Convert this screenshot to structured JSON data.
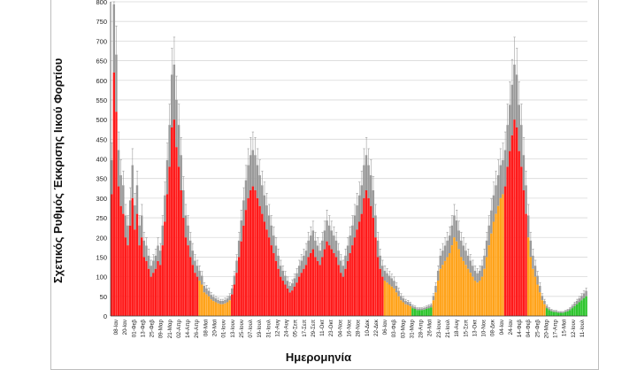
{
  "chart_data": {
    "type": "bar",
    "ylabel": "Σχετικός Ρυθμός Έκκρισης Ιικού Φορτίου",
    "xlabel": "Ημερομηνία",
    "ylim": [
      0,
      800
    ],
    "yticks": [
      0,
      50,
      100,
      150,
      200,
      250,
      300,
      350,
      400,
      450,
      500,
      550,
      600,
      650,
      700,
      750,
      800
    ],
    "grid": true,
    "legend": "none",
    "colors": {
      "red": "#ff1a1a",
      "orange": "#ffa31a",
      "green": "#2ec52e",
      "error_bar": "#8c8c8c",
      "upper_band": "#9a9a9a"
    },
    "x_tick_labels": [
      "08-Ιαν",
      "20-Ιαν",
      "01-Φεβ",
      "13-Φεβ",
      "25-Φεβ",
      "09-Μαρ",
      "21-Μαρ",
      "02-Απρ",
      "14-Απρ",
      "26-Απρ",
      "08-Μαϊ",
      "20-Μαϊ",
      "01-Ιουν",
      "13-Ιουν",
      "25-Ιουν",
      "07-Ιουλ",
      "19-Ιουλ",
      "31-Ιουλ",
      "12-Αυγ",
      "24-Αυγ",
      "05-Σεπ",
      "17-Σεπ",
      "29-Σεπ",
      "11-Οκτ",
      "23-Οκτ",
      "04-Νοε",
      "16-Νοε",
      "28-Νοε",
      "10-Δεκ",
      "22-Δεκ",
      "06-Ιαν",
      "03-Φεβ",
      "03-Μαρ",
      "31-Μαρ",
      "28-Απρ",
      "26-Μαϊ",
      "23-Ιουν",
      "21-Ιουλ",
      "18-Αυγ",
      "15-Σεπ",
      "13-Οκτ",
      "10-Νοε",
      "08-Δεκ",
      "04-Ιαν",
      "24-Ιαν",
      "14-Φεβ",
      "04-Φεβ",
      "25-Φεβ",
      "20-Μαρ",
      "17-Απρ",
      "15-Μαϊ",
      "12-Ιουν",
      "11-Ιουλ"
    ],
    "segments": [
      {
        "color": "red",
        "values": [
          310,
          620,
          520,
          330,
          280,
          260,
          200,
          180,
          230,
          300,
          220,
          260,
          180,
          200,
          150,
          140,
          120,
          100,
          110,
          120,
          140,
          130,
          180,
          240,
          310,
          380,
          480,
          500,
          430,
          380,
          320,
          250,
          200,
          180,
          150,
          130,
          110,
          100
        ]
      },
      {
        "color": "orange",
        "values": [
          90,
          80,
          60,
          55,
          50,
          42,
          38,
          35,
          32,
          30,
          30,
          32,
          35,
          40
        ]
      },
      {
        "color": "red",
        "values": [
          55,
          80,
          110,
          150,
          190,
          230,
          270,
          300,
          320,
          330,
          320,
          300,
          280,
          260,
          240,
          220,
          200,
          180,
          160,
          140,
          120,
          100,
          90,
          80,
          70,
          60,
          65,
          75,
          85,
          100,
          110,
          120,
          130,
          150,
          160,
          170,
          150,
          140,
          130,
          150,
          170,
          190,
          180,
          170,
          160,
          150,
          130,
          110,
          100,
          120,
          140,
          160,
          180,
          200,
          220,
          240,
          260,
          300,
          320,
          300,
          280,
          250,
          200,
          150,
          120,
          100
        ]
      },
      {
        "color": "orange",
        "values": [
          90,
          85,
          80,
          75,
          70,
          60,
          50,
          40,
          35,
          30,
          28,
          25
        ]
      },
      {
        "color": "green",
        "values": [
          20,
          18,
          15,
          15,
          15,
          16,
          18,
          20,
          22
        ]
      },
      {
        "color": "orange",
        "values": [
          40,
          60,
          90,
          120,
          130,
          140,
          150,
          160,
          180,
          200,
          190,
          170,
          150,
          140,
          130,
          120,
          110,
          100,
          90,
          85,
          90,
          100,
          120,
          150,
          180,
          210,
          240,
          260,
          280,
          300,
          310
        ]
      },
      {
        "color": "red",
        "values": [
          330,
          380,
          420,
          460,
          500,
          480,
          420,
          380,
          320,
          260
        ]
      },
      {
        "color": "orange",
        "values": [
          200,
          150,
          120,
          100,
          80,
          60,
          40,
          30
        ]
      },
      {
        "color": "green",
        "values": [
          20,
          15,
          12,
          10,
          10,
          8,
          8,
          8,
          10,
          12,
          15,
          20,
          25,
          30,
          35,
          40,
          45,
          50
        ]
      }
    ],
    "upper_band_ratio": 1.28,
    "error_ratio": 1.42
  }
}
